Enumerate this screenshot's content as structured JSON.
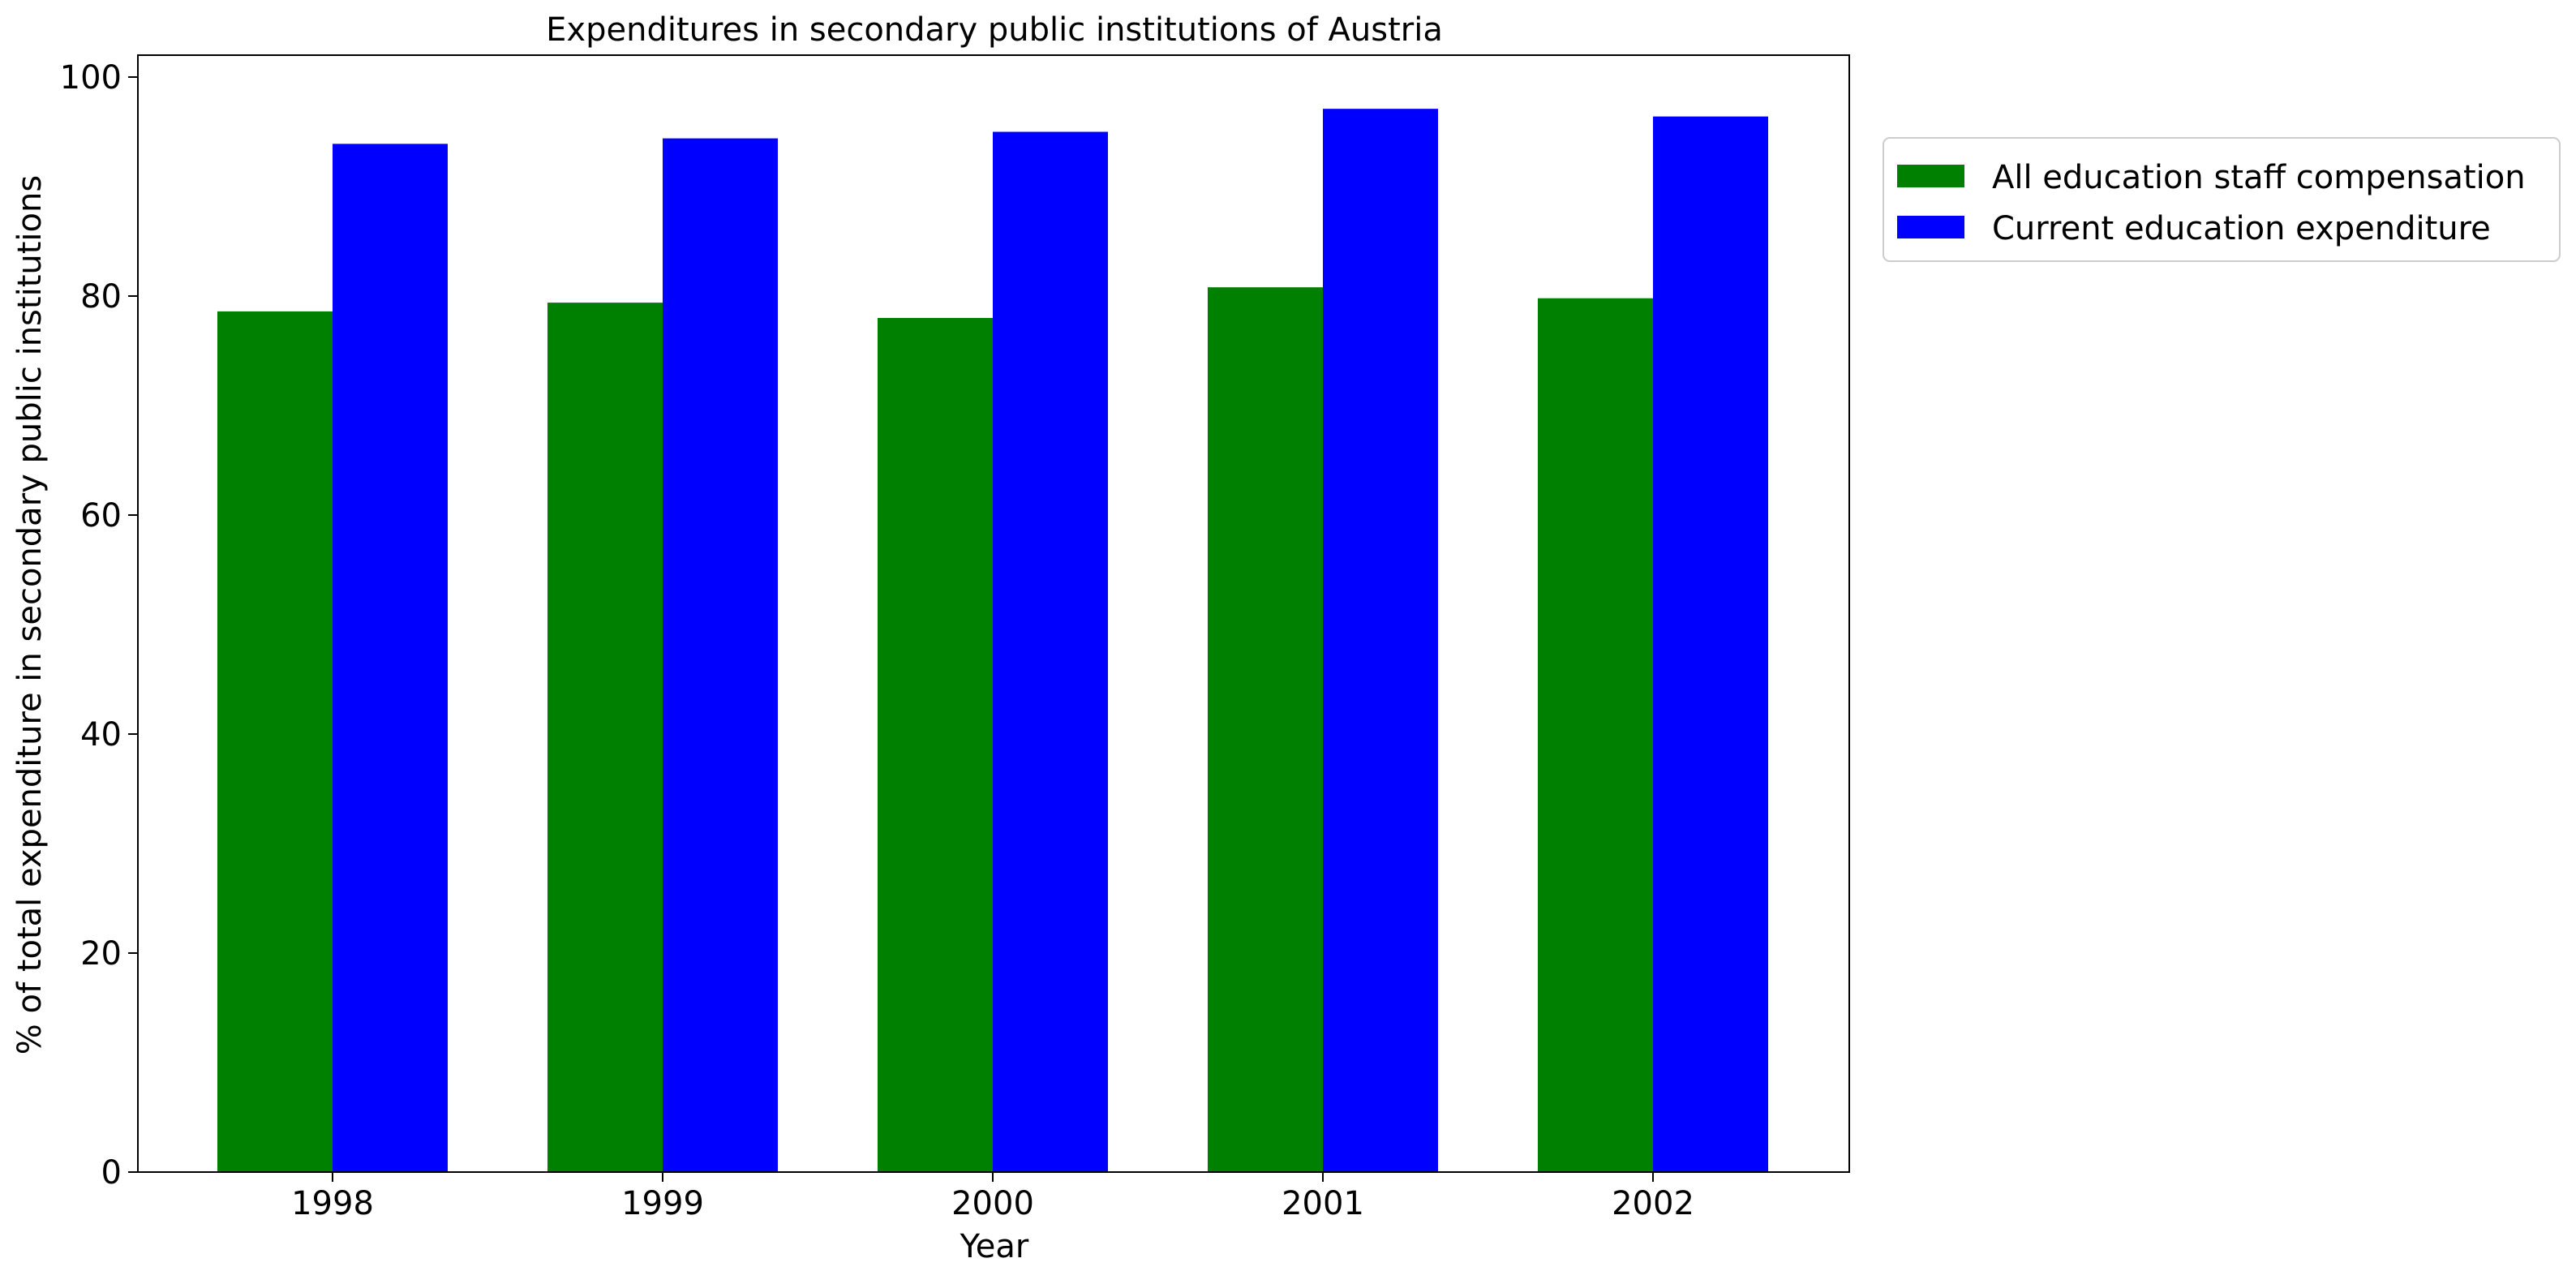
{
  "chart_data": {
    "type": "bar",
    "title": "Expenditures in secondary public institutions of Austria",
    "xlabel": "Year",
    "ylabel": "% of total expenditure in secondary public institutions",
    "categories": [
      "1998",
      "1999",
      "2000",
      "2001",
      "2002"
    ],
    "series": [
      {
        "name": "All education staff compensation",
        "color": "#008000",
        "values": [
          78.6,
          79.4,
          78.0,
          80.8,
          79.8
        ]
      },
      {
        "name": "Current education expenditure",
        "color": "#0000ff",
        "values": [
          93.9,
          94.4,
          95.0,
          97.1,
          96.4
        ]
      }
    ],
    "ylim": [
      0,
      102
    ],
    "yticks": [
      "0",
      "20",
      "40",
      "60",
      "80",
      "100"
    ],
    "grid": false,
    "legend_position": "outside-right-top"
  }
}
